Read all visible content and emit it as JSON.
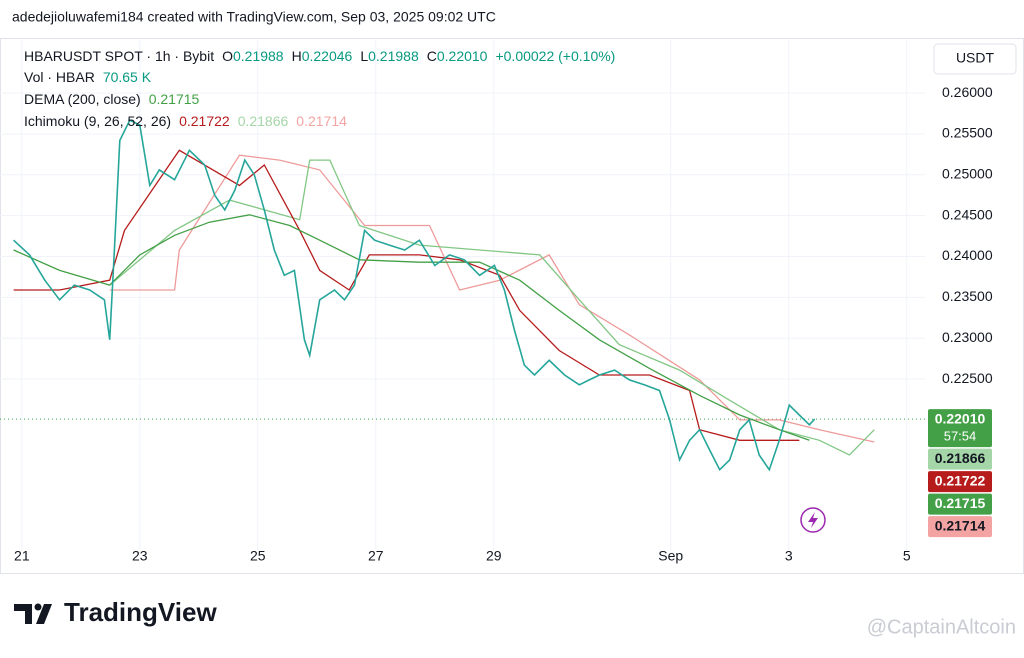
{
  "chart_data": {
    "type": "line",
    "title": "adedejioluwafemi184 created with TradingView.com, Sep 03, 2025 09:02 UTC",
    "currency_button": "USDT",
    "header": {
      "ohlc": [
        [
          "O",
          "0.21988"
        ],
        [
          "H",
          "0.22046"
        ],
        [
          "L",
          "0.21988"
        ],
        [
          "C",
          "0.22010"
        ]
      ],
      "change": "+0.00022 (+0.10%)",
      "volume_label": "Vol · HBAR",
      "volume_value": "70.65 K"
    },
    "xlim": [
      20.63,
      36.31
    ],
    "ylim": [
      0.2053,
      0.2665
    ],
    "xticks": [
      21,
      23,
      25,
      27,
      29,
      {
        "value": 32,
        "label": "Sep"
      },
      {
        "value": 34,
        "label": "3"
      },
      {
        "value": 36,
        "label": "5"
      }
    ],
    "yticks": [
      {
        "value": 0.26,
        "label": "0.26000"
      },
      {
        "value": 0.255,
        "label": "0.25500"
      },
      {
        "value": 0.25,
        "label": "0.25000"
      },
      {
        "value": 0.245,
        "label": "0.24500"
      },
      {
        "value": 0.24,
        "label": "0.24000"
      },
      {
        "value": 0.235,
        "label": "0.23500"
      },
      {
        "value": 0.23,
        "label": "0.23000"
      },
      {
        "value": 0.225,
        "label": "0.22500"
      }
    ],
    "grid": true,
    "series": [
      {
        "name": "HBARUSDT SPOT · 1h · Bybit",
        "color": "#26a69a",
        "x": [
          20.86,
          21.13,
          21.39,
          21.64,
          21.89,
          22.15,
          22.4,
          22.49,
          22.57,
          22.66,
          22.83,
          23.0,
          23.17,
          23.33,
          23.59,
          23.84,
          24.1,
          24.27,
          24.44,
          24.61,
          24.78,
          24.94,
          25.11,
          25.28,
          25.45,
          25.62,
          25.79,
          25.88,
          26.05,
          26.3,
          26.47,
          26.64,
          26.81,
          26.98,
          27.23,
          27.49,
          27.74,
          28.0,
          28.25,
          28.5,
          28.76,
          29.01,
          29.18,
          29.35,
          29.52,
          29.69,
          29.94,
          30.2,
          30.45,
          30.62,
          30.79,
          31.05,
          31.3,
          31.55,
          31.81,
          31.98,
          32.15,
          32.32,
          32.49,
          32.66,
          32.83,
          33.0,
          33.17,
          33.33,
          33.5,
          33.67,
          33.84,
          34.01,
          34.18,
          34.35,
          34.44
        ],
        "values": [
          0.242,
          0.2402,
          0.2371,
          0.2347,
          0.2365,
          0.2359,
          0.2347,
          0.2298,
          0.2408,
          0.2542,
          0.2567,
          0.2561,
          0.2487,
          0.2506,
          0.2494,
          0.253,
          0.2512,
          0.2475,
          0.2457,
          0.2481,
          0.2518,
          0.25,
          0.2457,
          0.2408,
          0.2377,
          0.2383,
          0.2298,
          0.2279,
          0.2347,
          0.2359,
          0.2347,
          0.2365,
          0.2432,
          0.242,
          0.2414,
          0.2408,
          0.242,
          0.2389,
          0.2402,
          0.2396,
          0.2377,
          0.2389,
          0.2359,
          0.231,
          0.2267,
          0.2255,
          0.2273,
          0.2255,
          0.2243,
          0.2249,
          0.2255,
          0.2261,
          0.2249,
          0.2243,
          0.2236,
          0.22,
          0.2151,
          0.2175,
          0.2188,
          0.2163,
          0.2139,
          0.2151,
          0.2188,
          0.22,
          0.2157,
          0.2139,
          0.2175,
          0.2218,
          0.2206,
          0.2194,
          0.2201
        ]
      },
      {
        "name": "DEMA (200, close)",
        "legend_value": "0.21715",
        "color": "#43a047",
        "x": [
          20.86,
          21.64,
          22.49,
          23.0,
          23.59,
          24.18,
          24.86,
          25.54,
          26.05,
          26.72,
          27.74,
          28.76,
          29.44,
          30.11,
          30.79,
          31.64,
          32.49,
          33.17,
          33.84,
          34.35
        ],
        "values": [
          0.2408,
          0.2383,
          0.2365,
          0.2402,
          0.2426,
          0.2442,
          0.2451,
          0.2438,
          0.242,
          0.2396,
          0.2393,
          0.2393,
          0.2371,
          0.2334,
          0.2298,
          0.2263,
          0.223,
          0.2206,
          0.2188,
          0.2175
        ]
      },
      {
        "name": "Ichimoku (9, 26, 52, 26)",
        "legend_value": "0.21722",
        "color": "#b71c1c",
        "x": [
          20.86,
          21.64,
          22.49,
          22.74,
          23.67,
          24.69,
          25.11,
          25.71,
          26.05,
          26.55,
          26.89,
          27.74,
          28.42,
          29.1,
          29.44,
          30.11,
          30.79,
          31.64,
          32.32,
          32.49,
          33.17,
          33.67,
          34.18
        ],
        "values": [
          0.2359,
          0.2359,
          0.2371,
          0.2432,
          0.253,
          0.2487,
          0.2512,
          0.2432,
          0.2383,
          0.2359,
          0.2402,
          0.2402,
          0.2396,
          0.2377,
          0.2334,
          0.2285,
          0.2255,
          0.2255,
          0.2236,
          0.2188,
          0.2175,
          0.2175,
          0.2175
        ]
      },
      {
        "legend_value": "0.21866",
        "color": "#81c784",
        "x": [
          22.49,
          23.59,
          24.52,
          25.71,
          25.88,
          26.22,
          26.72,
          27.74,
          28.76,
          29.78,
          30.45,
          31.13,
          32.15,
          33.0,
          33.84,
          34.52,
          35.03,
          35.45
        ],
        "values": [
          0.2365,
          0.2432,
          0.2469,
          0.2445,
          0.2518,
          0.2518,
          0.2438,
          0.2414,
          0.2408,
          0.2402,
          0.2347,
          0.2292,
          0.2261,
          0.2224,
          0.2188,
          0.2175,
          0.2157,
          0.2188
        ]
      },
      {
        "legend_value": "0.21714",
        "color": "#ef9a9a",
        "x": [
          22.49,
          23.59,
          23.67,
          24.69,
          25.37,
          26.05,
          26.81,
          27.91,
          28.42,
          29.1,
          29.94,
          30.45,
          31.3,
          32.49,
          33.17,
          33.84,
          34.52,
          35.45
        ],
        "values": [
          0.2359,
          0.2359,
          0.2408,
          0.2524,
          0.2518,
          0.2506,
          0.2438,
          0.2438,
          0.2359,
          0.2371,
          0.2402,
          0.2341,
          0.2304,
          0.2249,
          0.22,
          0.22,
          0.2188,
          0.2173
        ]
      }
    ],
    "price_tags": [
      {
        "value": 0.2201,
        "label": "0.22010",
        "color": "#43a047",
        "text_color": "#ffffff",
        "countdown": "57:54"
      },
      {
        "value": 0.21866,
        "label": "0.21866",
        "color": "#a5d6a7",
        "text_color": "#131722"
      },
      {
        "value": 0.21722,
        "label": "0.21722",
        "color": "#b71c1c",
        "text_color": "#ffffff"
      },
      {
        "value": 0.21715,
        "label": "0.21715",
        "color": "#43a047",
        "text_color": "#ffffff"
      },
      {
        "value": 0.21714,
        "label": "0.21714",
        "color": "#f4a3a3",
        "text_color": "#131722"
      }
    ],
    "logo": "TradingView",
    "watermark": "@CaptainAltcoin"
  }
}
